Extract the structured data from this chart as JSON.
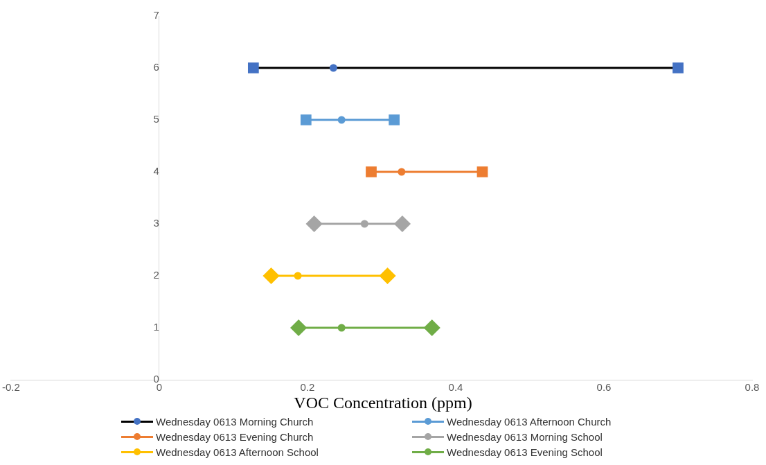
{
  "chart_data": {
    "type": "line",
    "xlabel": "VOC Concentration (ppm)",
    "xlim": [
      -0.2,
      0.8
    ],
    "xticks": [
      -0.2,
      0,
      0.2,
      0.4,
      0.6,
      0.8
    ],
    "ylim": [
      0,
      7
    ],
    "yticks": [
      0,
      1,
      2,
      3,
      4,
      5,
      6,
      7
    ],
    "grid": false,
    "legend": "bottom",
    "series": [
      {
        "name": "Wednesday 0613 Morning Church",
        "color": "#000000",
        "colors": [
          "#4472c4",
          "#4472c4",
          "#4472c4"
        ],
        "marker": "square",
        "x": [
          0.127,
          0.235,
          0.7
        ],
        "values": [
          6,
          6,
          6
        ]
      },
      {
        "name": "Wednesday 0613 Afternoon Church",
        "color": "#5b9bd5",
        "marker": "square",
        "x": [
          0.198,
          0.246,
          0.317
        ],
        "values": [
          5,
          5,
          5
        ]
      },
      {
        "name": "Wednesday 0613 Evening Church",
        "color": "#ed7d31",
        "marker": "square",
        "x": [
          0.286,
          0.327,
          0.436
        ],
        "values": [
          4,
          4,
          4
        ]
      },
      {
        "name": "Wednesday 0613 Morning School",
        "color": "#a5a5a5",
        "marker": "diamond",
        "x": [
          0.209,
          0.277,
          0.328
        ],
        "values": [
          3,
          3,
          3
        ]
      },
      {
        "name": "Wednesday 0613 Afternoon School",
        "color": "#ffc000",
        "marker": "diamond",
        "x": [
          0.151,
          0.187,
          0.308
        ],
        "values": [
          2,
          2,
          2
        ]
      },
      {
        "name": "Wednesday 0613 Evening School",
        "color": "#70ad47",
        "marker": "diamond",
        "x": [
          0.188,
          0.246,
          0.368
        ],
        "values": [
          1,
          1,
          1
        ]
      }
    ]
  }
}
